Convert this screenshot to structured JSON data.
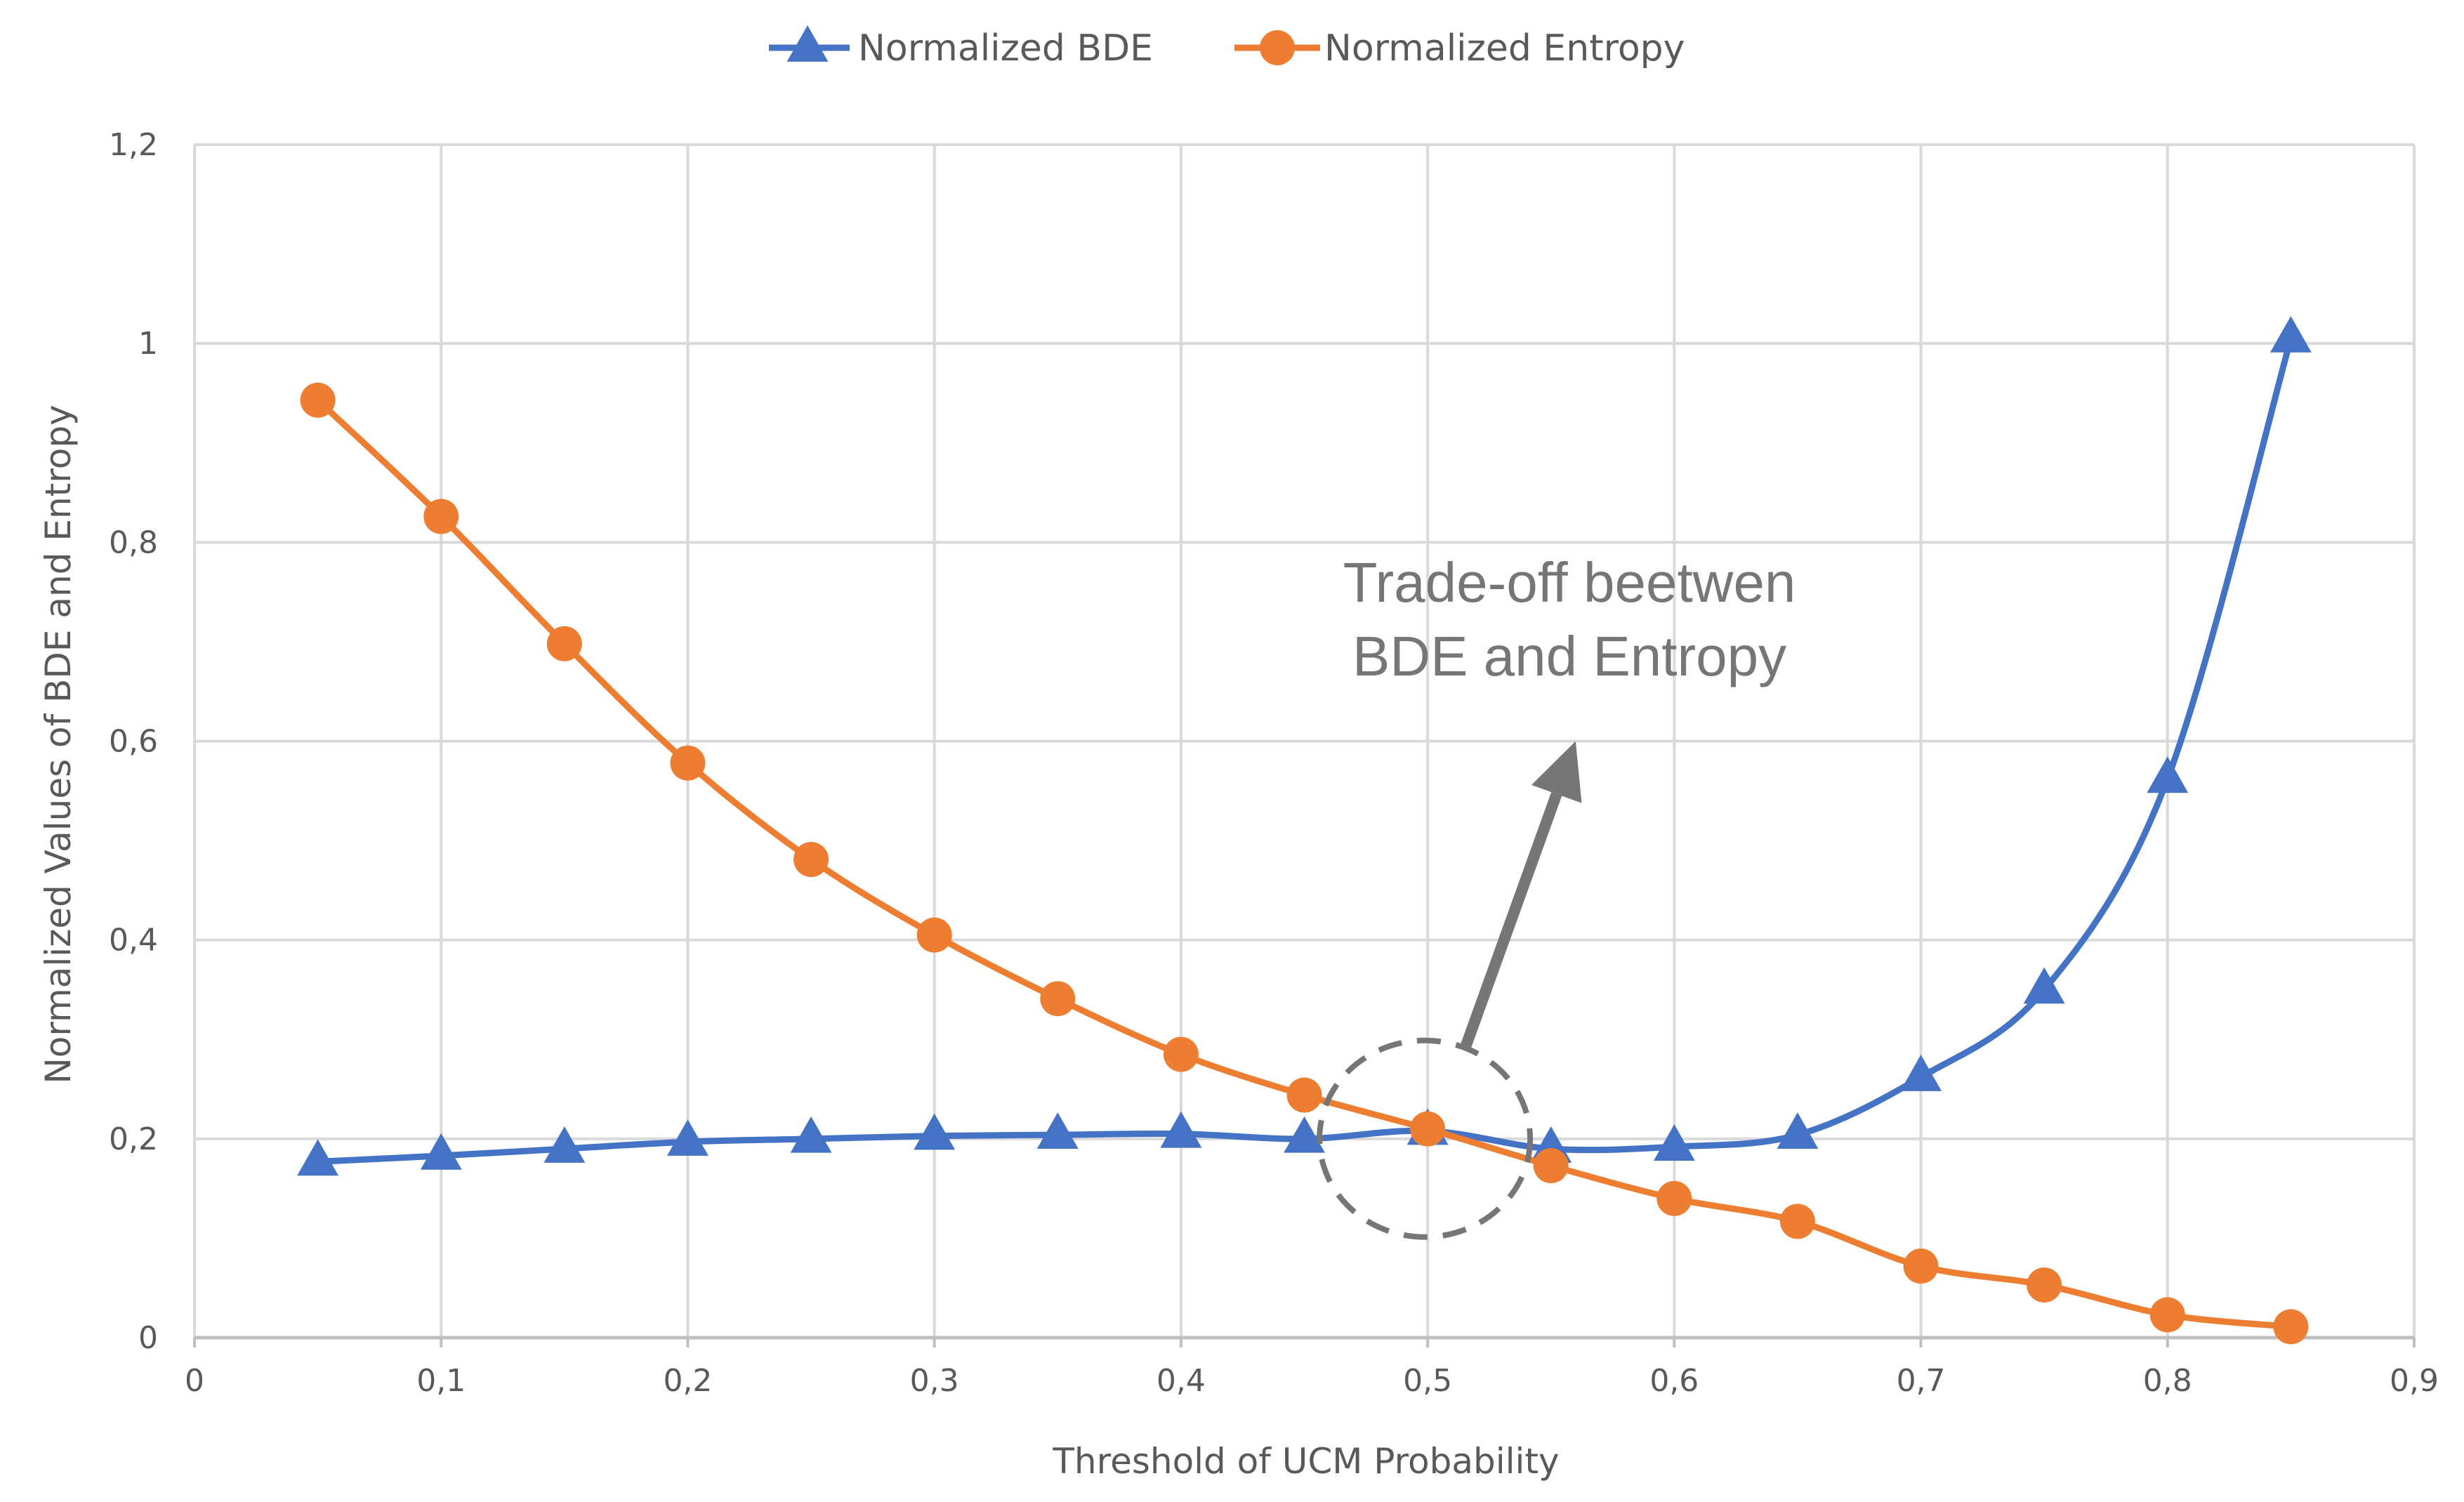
{
  "chart_data": {
    "type": "line",
    "title": "",
    "xlabel": "Threshold of UCM Probability",
    "ylabel": "Normalized Values of BDE and Entropy",
    "xlim": [
      0,
      0.9
    ],
    "ylim": [
      0,
      1.2
    ],
    "grid": true,
    "legend_position": "top-center",
    "x_ticks": [
      "0",
      "0,1",
      "0,2",
      "0,3",
      "0,4",
      "0,5",
      "0,6",
      "0,7",
      "0,8",
      "0,9"
    ],
    "y_ticks": [
      "0",
      "0,2",
      "0,4",
      "0,6",
      "0,8",
      "1",
      "1,2"
    ],
    "x": [
      0.05,
      0.1,
      0.15,
      0.2,
      0.25,
      0.3,
      0.35,
      0.4,
      0.45,
      0.5,
      0.55,
      0.6,
      0.65,
      0.7,
      0.75,
      0.8,
      0.85
    ],
    "series": [
      {
        "name": "Normalized BDE",
        "marker": "triangle",
        "color": "#4472C4",
        "values": [
          0.177,
          0.183,
          0.19,
          0.197,
          0.2,
          0.203,
          0.204,
          0.205,
          0.2,
          0.208,
          0.19,
          0.192,
          0.204,
          0.262,
          0.35,
          0.562,
          1.005
        ]
      },
      {
        "name": "Normalized Entropy",
        "marker": "circle",
        "color": "#ED7D31",
        "values": [
          0.943,
          0.826,
          0.698,
          0.578,
          0.481,
          0.405,
          0.341,
          0.285,
          0.244,
          0.21,
          0.173,
          0.14,
          0.117,
          0.072,
          0.053,
          0.023,
          0.011
        ]
      }
    ],
    "annotations": [
      {
        "text_lines": [
          "Trade-off beetwen",
          "BDE and Entropy"
        ],
        "color": "#767676",
        "target": {
          "x": 0.5,
          "y": 0.21
        },
        "arrow_head": {
          "x": 0.56,
          "y": 0.6
        },
        "arrow_tail": {
          "x": 0.515,
          "y": 0.29
        }
      }
    ]
  }
}
